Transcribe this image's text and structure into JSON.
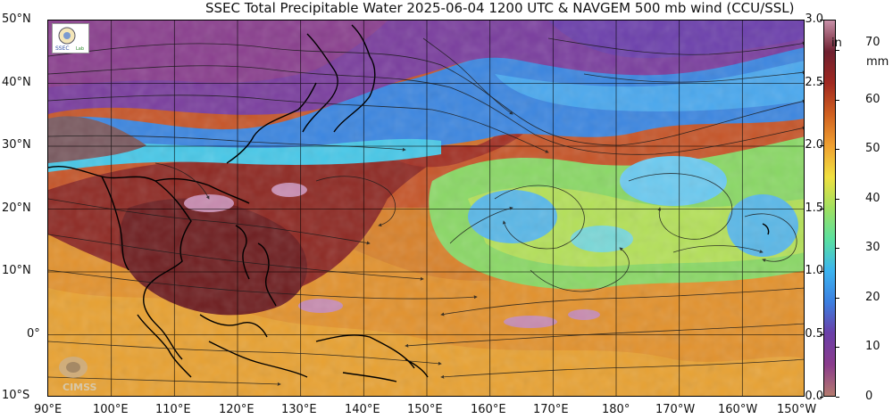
{
  "title": "SSEC Total Precipitable Water  2025-06-04 1200 UTC & NAVGEM 500 mb wind (CCU/SSL)",
  "lat_labels": [
    "50°N",
    "40°N",
    "30°N",
    "20°N",
    "10°N",
    "0°",
    "10°S"
  ],
  "lon_labels": [
    "90°E",
    "100°E",
    "110°E",
    "120°E",
    "130°E",
    "140°E",
    "150°E",
    "160°E",
    "170°E",
    "180°",
    "170°W",
    "160°W",
    "150°W"
  ],
  "colorbar": {
    "unit_in": "in",
    "unit_mm": "mm",
    "inch_ticks": [
      "3.0",
      "2.5",
      "2.0",
      "1.5",
      "1.0",
      "0.5",
      "0.0"
    ],
    "inch_values": [
      3.0,
      2.5,
      2.0,
      1.5,
      1.0,
      0.5,
      0.0
    ],
    "mm_ticks": [
      "70",
      "60",
      "50",
      "40",
      "30",
      "20",
      "10",
      "0"
    ],
    "mm_values": [
      70,
      60,
      50,
      40,
      30,
      20,
      10,
      0
    ],
    "max_mm": 76.2,
    "colors": [
      "#b47a6e",
      "#8a3c8c",
      "#6a3fa8",
      "#3c7fe0",
      "#3cb4f0",
      "#5ae0a0",
      "#a0e060",
      "#f0e040",
      "#f0a030",
      "#d06020",
      "#a02820",
      "#6e2030",
      "#c890a8"
    ]
  },
  "logos": {
    "ssec": "ssec-logo",
    "cimss": "CIMSS"
  }
}
